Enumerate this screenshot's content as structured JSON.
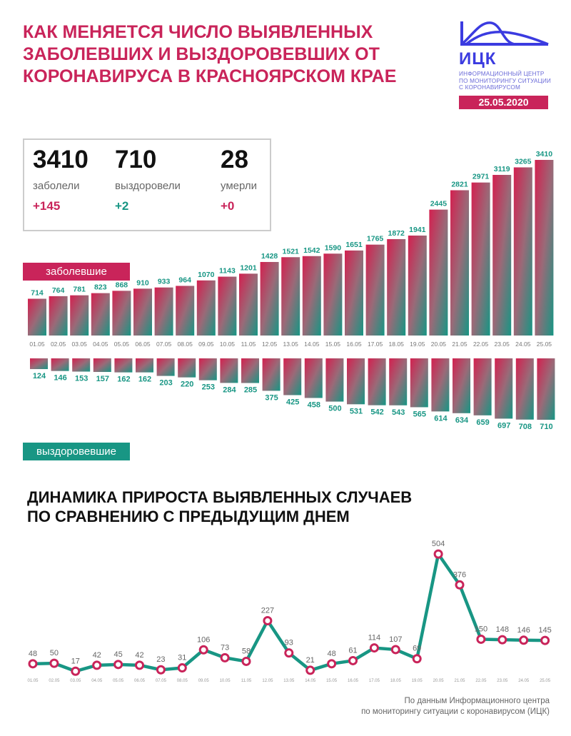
{
  "title": "КАК МЕНЯЕТСЯ ЧИСЛО ВЫЯВЛЕННЫХ ЗАБОЛЕВШИХ И ВЫЗДОРОВЕВШИХ ОТ КОРОНАВИРУСА В КРАСНОЯРСКОМ КРАЕ",
  "logo": {
    "name": "ИЦК",
    "subtitle_lines": [
      "ИНФОРМАЦИОННЫЙ ЦЕНТР",
      "ПО МОНИТОРИНГУ СИТУАЦИИ",
      "С КОРОНАВИРУСОМ"
    ],
    "date": "25.05.2020"
  },
  "stats": [
    {
      "value": "3410",
      "label": "заболели",
      "delta": "+145",
      "color": "#c9245a"
    },
    {
      "value": "710",
      "label": "выздоровели",
      "delta": "+2",
      "color": "#189684"
    },
    {
      "value": "28",
      "label": "умерли",
      "delta": "+0",
      "color": "#c9245a"
    }
  ],
  "labels": {
    "infected": "заболевшие",
    "recovered": "выздоровевшие"
  },
  "section2_title": [
    "ДИНАМИКА ПРИРОСТА ВЫЯВЛЕННЫХ СЛУЧАЕВ",
    "ПО СРАВНЕНИЮ С ПРЕДЫДУЩИМ ДНЕМ"
  ],
  "source": [
    "По данным Информационного центра",
    "по мониторингу ситуации с коронавирусом (ИЦК)"
  ],
  "colors": {
    "crimson": "#c9245a",
    "teal": "#189684"
  },
  "chart_data": [
    {
      "type": "bar",
      "title": "заболевшие",
      "categories": [
        "01.05",
        "02.05",
        "03.05",
        "04.05",
        "05.05",
        "06.05",
        "07.05",
        "08.05",
        "09.05",
        "10.05",
        "11.05",
        "12.05",
        "13.05",
        "14.05",
        "15.05",
        "16.05",
        "17.05",
        "18.05",
        "19.05",
        "20.05",
        "21.05",
        "22.05",
        "23.05",
        "24.05",
        "25.05"
      ],
      "values": [
        714,
        764,
        781,
        823,
        868,
        910,
        933,
        964,
        1070,
        1143,
        1201,
        1428,
        1521,
        1542,
        1590,
        1651,
        1765,
        1872,
        1941,
        2445,
        2821,
        2971,
        3119,
        3265,
        3410
      ]
    },
    {
      "type": "bar",
      "title": "выздоровевшие",
      "orientation": "downward",
      "categories": [
        "01.05",
        "02.05",
        "03.05",
        "04.05",
        "05.05",
        "06.05",
        "07.05",
        "08.05",
        "09.05",
        "10.05",
        "11.05",
        "12.05",
        "13.05",
        "14.05",
        "15.05",
        "16.05",
        "17.05",
        "18.05",
        "19.05",
        "20.05",
        "21.05",
        "22.05",
        "23.05",
        "24.05",
        "25.05"
      ],
      "values": [
        124,
        146,
        153,
        157,
        162,
        162,
        203,
        220,
        253,
        284,
        285,
        375,
        425,
        458,
        500,
        531,
        542,
        543,
        565,
        614,
        634,
        659,
        697,
        708,
        710
      ]
    },
    {
      "type": "line",
      "title": "ДИНАМИКА ПРИРОСТА ВЫЯВЛЕННЫХ СЛУЧАЕВ ПО СРАВНЕНИЮ С ПРЕДЫДУЩИМ ДНЕМ",
      "categories": [
        "01.05",
        "02.05",
        "03.05",
        "04.05",
        "05.05",
        "06.05",
        "07.05",
        "08.05",
        "09.05",
        "10.05",
        "11.05",
        "12.05",
        "13.05",
        "14.05",
        "15.05",
        "16.05",
        "17.05",
        "18.05",
        "19.05",
        "20.05",
        "21.05",
        "22.05",
        "23.05",
        "24.05",
        "25.05"
      ],
      "values": [
        48,
        50,
        17,
        42,
        45,
        42,
        23,
        31,
        106,
        73,
        58,
        227,
        93,
        21,
        48,
        61,
        114,
        107,
        69,
        504,
        376,
        150,
        148,
        146,
        145
      ]
    }
  ]
}
